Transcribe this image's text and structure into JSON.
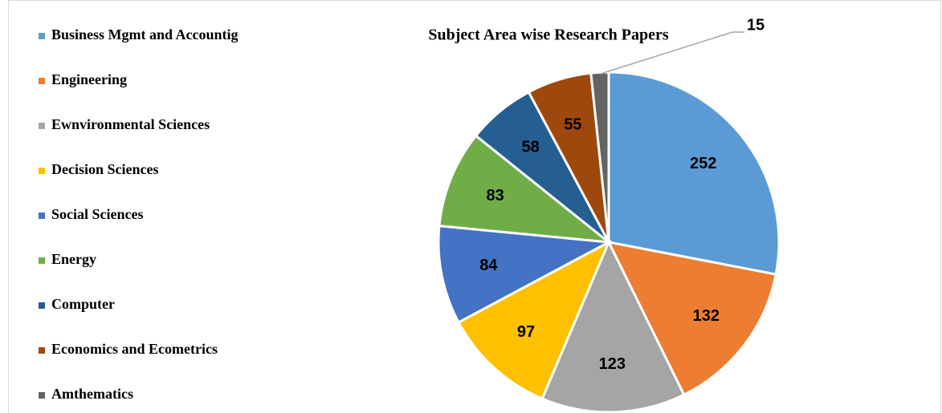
{
  "chart_data": {
    "type": "pie",
    "title": "Subject Area wise Research Papers",
    "categories": [
      "Business Mgmt and Accountig",
      "Engineering",
      "Ewnvironmental Sciences",
      "Decision Sciences",
      "Social Sciences",
      "Energy",
      "Computer",
      "Economics and Ecometrics",
      "Amthematics"
    ],
    "values": [
      252,
      132,
      123,
      97,
      84,
      83,
      58,
      55,
      15
    ],
    "colors": [
      "#5b9bd5",
      "#ed7d31",
      "#a5a5a5",
      "#ffc000",
      "#4472c4",
      "#70ad47",
      "#255e91",
      "#9e480e",
      "#636363"
    ],
    "legend": "left"
  }
}
